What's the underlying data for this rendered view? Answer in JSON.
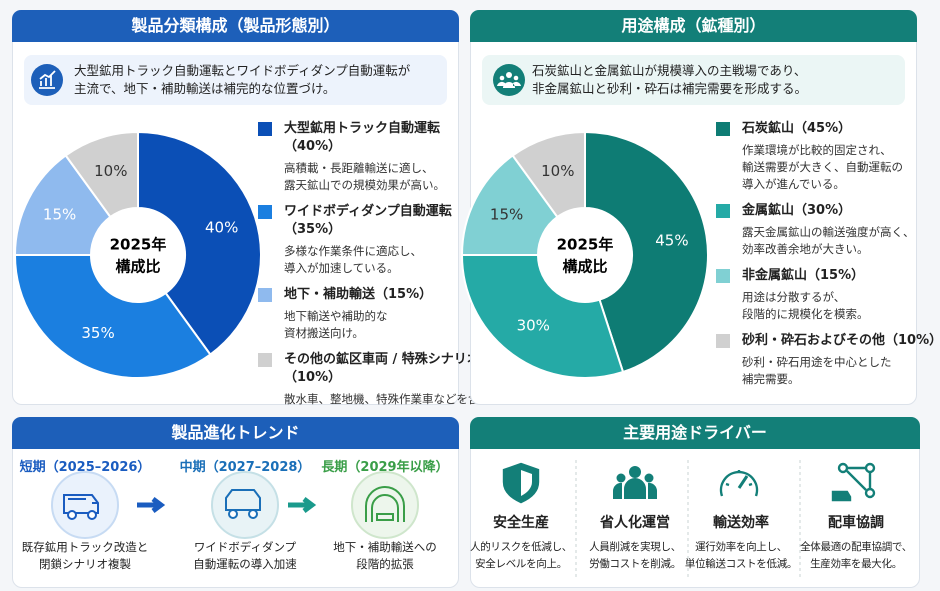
{
  "chart_data": [
    {
      "type": "pie",
      "title": "製品分類構成（製品形態別）",
      "note": [
        "大型鉱用トラック自動運転とワイドボディダンプ自動運転が",
        "主流で、地下・補助輸送は補完的な位置づけ。"
      ],
      "center_label": [
        "2025年",
        "構成比"
      ],
      "categories": [
        [
          "大型鉱用トラック自動運転",
          "（40%）"
        ],
        [
          "ワイドボディダンプ自動運転",
          "（35%）"
        ],
        [
          "地下・補助輸送（15%）"
        ],
        [
          "その他の鉱区車両 / 特殊シナリオ",
          "（10%）"
        ]
      ],
      "values": [
        40,
        35,
        15,
        10
      ],
      "value_labels": [
        "40%",
        "35%",
        "15%",
        "10%"
      ],
      "colors": [
        "#0b4fb6",
        "#1b7fe0",
        "#8fbaee",
        "#d0d0d0"
      ],
      "descriptions": [
        [
          "高積載・長距離輸送に適し、",
          "露天鉱山での規模効果が高い。"
        ],
        [
          "多様な作業条件に適応し、",
          "導入が加速している。"
        ],
        [
          "地下輸送や補助的な",
          "資材搬送向け。"
        ],
        [
          "散水車、整地機、特殊作業車などを含む。"
        ]
      ]
    },
    {
      "type": "pie",
      "title": "用途構成（鉱種別）",
      "note": [
        "石炭鉱山と金属鉱山が規模導入の主戦場であり、",
        "非金属鉱山と砂利・砕石は補完需要を形成する。"
      ],
      "center_label": [
        "2025年",
        "構成比"
      ],
      "categories": [
        [
          "石炭鉱山（45%）"
        ],
        [
          "金属鉱山（30%）"
        ],
        [
          "非金属鉱山（15%）"
        ],
        [
          "砂利・砕石およびその他（10%）"
        ]
      ],
      "values": [
        45,
        30,
        15,
        10
      ],
      "value_labels": [
        "45%",
        "30%",
        "15%",
        "10%"
      ],
      "colors": [
        "#0e7c74",
        "#25aaa6",
        "#80d0d3",
        "#d0d0d0"
      ],
      "descriptions": [
        [
          "作業環境が比較的固定され、",
          "輸送需要が大きく、自動運転の",
          "導入が進んでいる。"
        ],
        [
          "露天金属鉱山の輸送強度が高く、",
          "効率改善余地が大きい。"
        ],
        [
          "用途は分散するが、",
          "段階的に規模化を模索。"
        ],
        [
          "砂利・砕石用途を中心とした",
          "補完需要。"
        ]
      ]
    }
  ],
  "trend": {
    "title": "製品進化トレンド",
    "stages": [
      {
        "period": "短期（2025–2026）",
        "color": "#1a5cc0",
        "caption": [
          "既存鉱用トラック改造と",
          "閉鎖シナリオ複製"
        ]
      },
      {
        "period": "中期（2027–2028）",
        "color": "#1a6fb8",
        "caption": [
          "ワイドボディダンプ",
          "自動運転の導入加速"
        ]
      },
      {
        "period": "長期（2029年以降）",
        "color": "#3a9e48",
        "caption": [
          "地下・補助輸送への",
          "段階的拡張"
        ]
      }
    ]
  },
  "drivers": {
    "title": "主要用途ドライバー",
    "items": [
      {
        "title": "安全生産",
        "caption": [
          "人的リスクを低減し、",
          "安全レベルを向上。"
        ]
      },
      {
        "title": "省人化運営",
        "caption": [
          "人員削減を実現し、",
          "労働コストを削減。"
        ]
      },
      {
        "title": "輸送効率",
        "caption": [
          "運行効率を向上し、",
          "単位輸送コストを低減。"
        ]
      },
      {
        "title": "配車協調",
        "caption": [
          "全体最適の配車協調で、",
          "生産効率を最大化。"
        ]
      }
    ]
  }
}
